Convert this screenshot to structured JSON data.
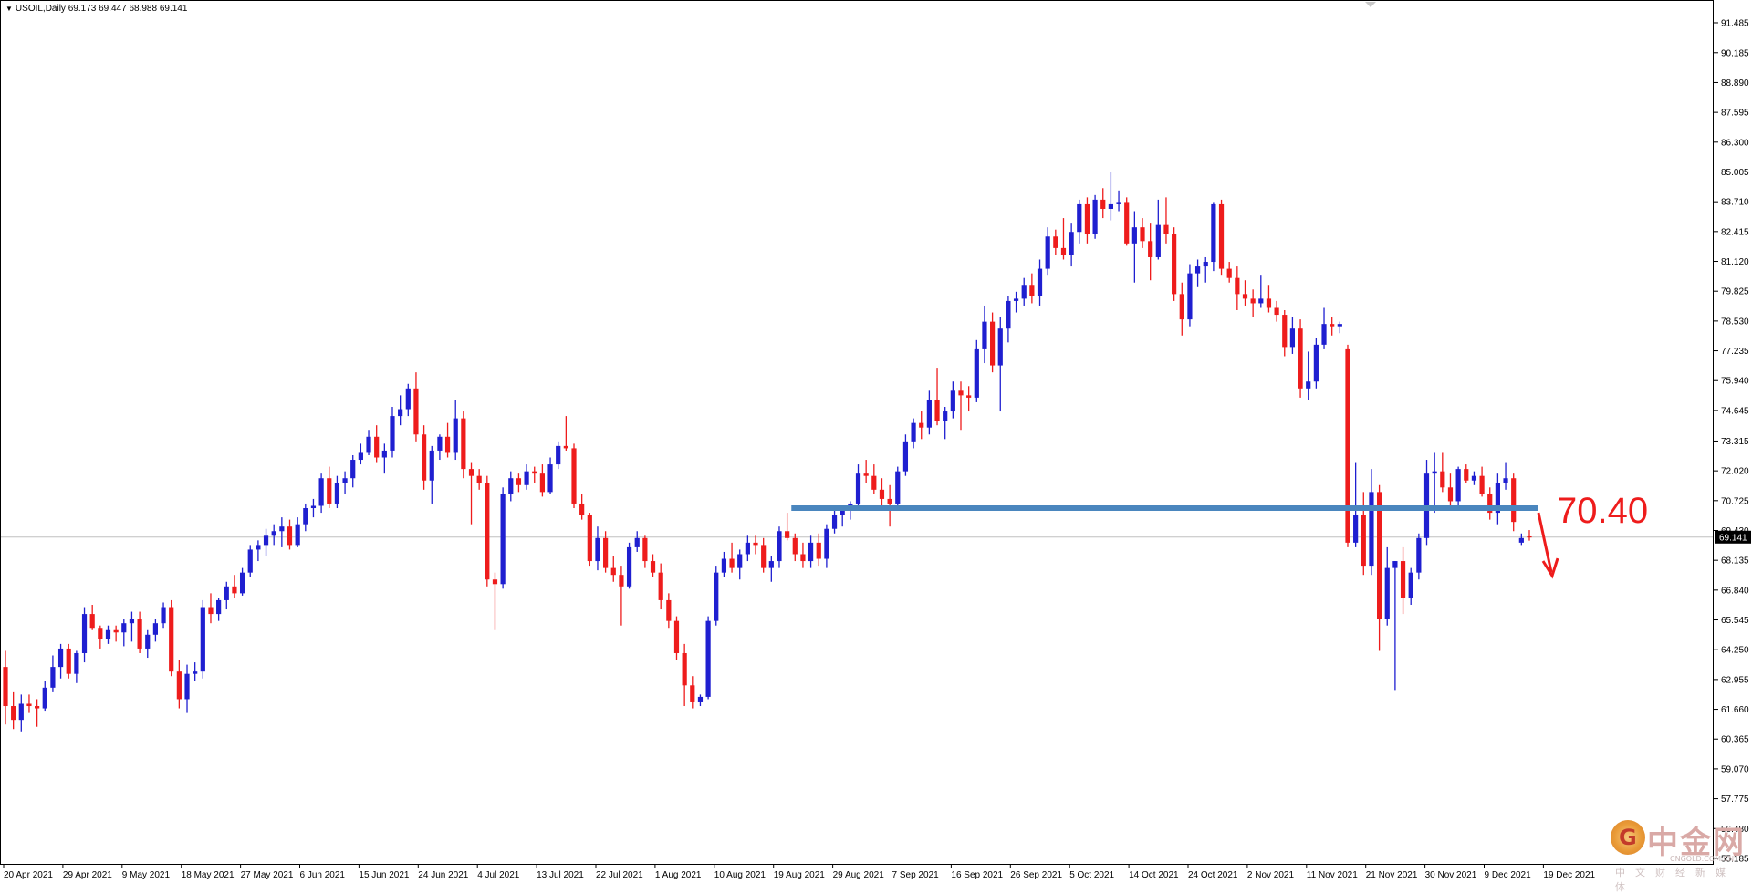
{
  "header": {
    "symbol": "USOIL,Daily",
    "open": "69.173",
    "high": "69.447",
    "low": "68.988",
    "close": "69.141"
  },
  "colors": {
    "bull": "#1f1fd0",
    "bear": "#ee1c1c",
    "level_line": "#4a86be",
    "current_price_line": "#c0c0c0",
    "annotation": "#ee1c1c"
  },
  "chart_data": {
    "type": "candlestick",
    "title": "",
    "xlabel": "",
    "ylabel": "",
    "ylim": [
      54.905,
      92.475
    ],
    "yticks": [
      "91.485",
      "90.185",
      "88.890",
      "87.595",
      "86.300",
      "85.005",
      "83.710",
      "82.415",
      "81.120",
      "79.825",
      "78.530",
      "77.235",
      "75.940",
      "74.645",
      "73.315",
      "72.020",
      "70.725",
      "69.430",
      "68.135",
      "66.840",
      "65.545",
      "64.250",
      "62.955",
      "61.660",
      "60.365",
      "59.070",
      "57.775",
      "56.480",
      "55.185"
    ],
    "xticks": [
      "20 Apr 2021",
      "29 Apr 2021",
      "9 May 2021",
      "18 May 2021",
      "27 May 2021",
      "6 Jun 2021",
      "15 Jun 2021",
      "24 Jun 2021",
      "4 Jul 2021",
      "13 Jul 2021",
      "22 Jul 2021",
      "1 Aug 2021",
      "10 Aug 2021",
      "19 Aug 2021",
      "29 Aug 2021",
      "7 Sep 2021",
      "16 Sep 2021",
      "26 Sep 2021",
      "5 Oct 2021",
      "14 Oct 2021",
      "24 Oct 2021",
      "2 Nov 2021",
      "11 Nov 2021",
      "21 Nov 2021",
      "30 Nov 2021",
      "9 Dec 2021",
      "19 Dec 2021"
    ],
    "current_price": 69.141,
    "current_price_label": "69.141",
    "support_level": 70.4,
    "support_label": "70.40",
    "candles": [
      [
        63.5,
        64.2,
        61.0,
        61.8
      ],
      [
        61.8,
        62.4,
        60.8,
        61.2
      ],
      [
        61.2,
        62.3,
        60.7,
        61.9
      ],
      [
        61.9,
        62.3,
        61.5,
        61.8
      ],
      [
        61.8,
        62.1,
        60.9,
        61.7
      ],
      [
        61.7,
        62.9,
        61.6,
        62.6
      ],
      [
        62.6,
        64.0,
        62.4,
        63.5
      ],
      [
        63.5,
        64.5,
        63.0,
        64.3
      ],
      [
        64.3,
        64.5,
        63.0,
        63.2
      ],
      [
        63.2,
        64.2,
        62.8,
        64.1
      ],
      [
        64.1,
        66.1,
        63.7,
        65.8
      ],
      [
        65.8,
        66.2,
        65.1,
        65.2
      ],
      [
        65.2,
        65.3,
        64.3,
        64.7
      ],
      [
        64.7,
        65.3,
        64.5,
        65.1
      ],
      [
        65.1,
        65.3,
        64.6,
        65.0
      ],
      [
        65.0,
        65.6,
        64.4,
        65.4
      ],
      [
        65.4,
        65.9,
        64.6,
        65.6
      ],
      [
        65.6,
        65.9,
        64.1,
        64.3
      ],
      [
        64.3,
        65.1,
        63.9,
        64.9
      ],
      [
        64.9,
        65.6,
        64.6,
        65.4
      ],
      [
        65.4,
        66.3,
        65.2,
        66.1
      ],
      [
        66.1,
        66.4,
        63.1,
        63.3
      ],
      [
        63.3,
        63.8,
        61.7,
        62.1
      ],
      [
        62.1,
        63.6,
        61.5,
        63.2
      ],
      [
        63.2,
        63.7,
        62.9,
        63.3
      ],
      [
        63.3,
        66.4,
        63.0,
        66.1
      ],
      [
        66.1,
        66.7,
        65.4,
        65.8
      ],
      [
        65.8,
        66.5,
        65.5,
        66.4
      ],
      [
        66.4,
        67.2,
        66.0,
        67.0
      ],
      [
        67.0,
        67.5,
        66.5,
        66.7
      ],
      [
        66.7,
        67.8,
        66.6,
        67.6
      ],
      [
        67.6,
        68.8,
        67.4,
        68.6
      ],
      [
        68.6,
        69.0,
        68.1,
        68.8
      ],
      [
        68.8,
        69.5,
        68.3,
        69.2
      ],
      [
        69.2,
        69.7,
        68.8,
        69.4
      ],
      [
        69.4,
        70.0,
        68.7,
        69.6
      ],
      [
        69.6,
        69.9,
        68.6,
        68.8
      ],
      [
        68.8,
        70.0,
        68.7,
        69.7
      ],
      [
        69.7,
        70.6,
        69.4,
        70.4
      ],
      [
        70.4,
        70.8,
        70.0,
        70.5
      ],
      [
        70.5,
        71.9,
        70.2,
        71.7
      ],
      [
        71.7,
        72.2,
        70.4,
        70.6
      ],
      [
        70.6,
        71.8,
        70.4,
        71.5
      ],
      [
        71.5,
        72.0,
        71.0,
        71.7
      ],
      [
        71.7,
        72.7,
        71.3,
        72.5
      ],
      [
        72.5,
        73.2,
        72.3,
        72.8
      ],
      [
        72.8,
        73.8,
        72.7,
        73.5
      ],
      [
        73.5,
        74.0,
        72.4,
        72.6
      ],
      [
        72.6,
        73.2,
        71.9,
        72.9
      ],
      [
        72.9,
        74.8,
        72.6,
        74.4
      ],
      [
        74.4,
        75.3,
        74.0,
        74.7
      ],
      [
        74.7,
        75.8,
        74.4,
        75.6
      ],
      [
        75.6,
        76.3,
        73.3,
        73.6
      ],
      [
        73.6,
        74.0,
        71.2,
        71.6
      ],
      [
        71.6,
        73.1,
        70.6,
        72.9
      ],
      [
        72.9,
        73.6,
        72.5,
        73.5
      ],
      [
        73.5,
        74.1,
        72.6,
        72.8
      ],
      [
        72.8,
        75.1,
        72.5,
        74.3
      ],
      [
        74.3,
        74.6,
        71.7,
        72.1
      ],
      [
        72.1,
        72.4,
        69.7,
        71.8
      ],
      [
        71.8,
        72.1,
        71.2,
        71.5
      ],
      [
        71.5,
        71.8,
        67.0,
        67.3
      ],
      [
        67.3,
        67.6,
        65.1,
        67.1
      ],
      [
        67.1,
        71.3,
        66.9,
        71.0
      ],
      [
        71.0,
        72.0,
        70.7,
        71.7
      ],
      [
        71.7,
        71.9,
        71.1,
        71.4
      ],
      [
        71.4,
        72.3,
        71.2,
        72.0
      ],
      [
        72.0,
        72.2,
        71.5,
        71.9
      ],
      [
        71.9,
        72.3,
        70.9,
        71.1
      ],
      [
        71.1,
        72.6,
        71.0,
        72.3
      ],
      [
        72.3,
        73.3,
        72.1,
        73.1
      ],
      [
        73.1,
        74.4,
        72.9,
        73.0
      ],
      [
        73.0,
        73.2,
        70.4,
        70.6
      ],
      [
        70.6,
        71.0,
        69.9,
        70.1
      ],
      [
        70.1,
        70.2,
        67.9,
        68.1
      ],
      [
        68.1,
        69.6,
        67.7,
        69.1
      ],
      [
        69.1,
        69.4,
        67.6,
        67.8
      ],
      [
        67.8,
        68.3,
        67.2,
        67.5
      ],
      [
        67.5,
        67.9,
        65.3,
        67.0
      ],
      [
        67.0,
        68.9,
        66.9,
        68.7
      ],
      [
        68.7,
        69.4,
        68.5,
        69.1
      ],
      [
        69.1,
        69.2,
        67.8,
        68.1
      ],
      [
        68.1,
        68.4,
        67.4,
        67.6
      ],
      [
        67.6,
        68.0,
        66.0,
        66.4
      ],
      [
        66.4,
        66.7,
        65.2,
        65.5
      ],
      [
        65.5,
        65.7,
        63.8,
        64.1
      ],
      [
        64.1,
        64.5,
        61.8,
        62.7
      ],
      [
        62.7,
        63.1,
        61.7,
        62.0
      ],
      [
        62.0,
        62.3,
        61.8,
        62.2
      ],
      [
        62.2,
        65.7,
        62.1,
        65.5
      ],
      [
        65.5,
        67.9,
        65.3,
        67.6
      ],
      [
        67.6,
        68.5,
        67.4,
        68.2
      ],
      [
        68.2,
        68.9,
        67.6,
        67.8
      ],
      [
        67.8,
        68.6,
        67.3,
        68.4
      ],
      [
        68.4,
        69.2,
        68.1,
        68.9
      ],
      [
        68.9,
        69.2,
        68.4,
        68.8
      ],
      [
        68.8,
        69.1,
        67.6,
        67.8
      ],
      [
        67.8,
        68.3,
        67.2,
        68.1
      ],
      [
        68.1,
        69.6,
        67.8,
        69.4
      ],
      [
        69.4,
        70.2,
        69.0,
        69.1
      ],
      [
        69.1,
        69.3,
        68.1,
        68.4
      ],
      [
        68.4,
        68.9,
        67.8,
        68.1
      ],
      [
        68.1,
        69.2,
        67.8,
        68.9
      ],
      [
        68.9,
        69.3,
        67.9,
        68.2
      ],
      [
        68.2,
        69.7,
        67.8,
        69.5
      ],
      [
        69.5,
        70.3,
        69.3,
        70.1
      ],
      [
        70.1,
        70.5,
        69.6,
        70.3
      ],
      [
        70.3,
        70.7,
        69.9,
        70.6
      ],
      [
        70.6,
        72.3,
        70.5,
        71.9
      ],
      [
        71.9,
        72.5,
        71.5,
        71.8
      ],
      [
        71.8,
        72.3,
        71.0,
        71.2
      ],
      [
        71.2,
        71.7,
        70.3,
        70.8
      ],
      [
        70.8,
        71.4,
        69.6,
        70.6
      ],
      [
        70.6,
        72.2,
        70.4,
        72.0
      ],
      [
        72.0,
        73.6,
        71.8,
        73.3
      ],
      [
        73.3,
        74.3,
        73.0,
        74.1
      ],
      [
        74.1,
        74.6,
        73.4,
        73.9
      ],
      [
        73.9,
        75.5,
        73.6,
        75.1
      ],
      [
        75.1,
        76.5,
        74.0,
        74.2
      ],
      [
        74.2,
        74.8,
        73.4,
        74.6
      ],
      [
        74.6,
        75.9,
        74.3,
        75.5
      ],
      [
        75.5,
        75.9,
        73.8,
        75.3
      ],
      [
        75.3,
        75.7,
        74.6,
        75.2
      ],
      [
        75.2,
        77.7,
        75.0,
        77.3
      ],
      [
        77.3,
        79.2,
        76.7,
        78.5
      ],
      [
        78.5,
        78.9,
        76.3,
        76.6
      ],
      [
        76.6,
        78.7,
        74.6,
        78.2
      ],
      [
        78.2,
        79.6,
        77.6,
        79.4
      ],
      [
        79.4,
        79.8,
        78.9,
        79.5
      ],
      [
        79.5,
        80.4,
        79.2,
        80.1
      ],
      [
        80.1,
        80.6,
        79.3,
        79.6
      ],
      [
        79.6,
        81.2,
        79.2,
        80.8
      ],
      [
        80.8,
        82.6,
        80.5,
        82.2
      ],
      [
        82.2,
        82.5,
        81.4,
        81.7
      ],
      [
        81.7,
        83.0,
        81.2,
        81.4
      ],
      [
        81.4,
        82.8,
        80.9,
        82.4
      ],
      [
        82.4,
        83.8,
        81.9,
        83.6
      ],
      [
        83.6,
        83.9,
        81.9,
        82.3
      ],
      [
        82.3,
        84.0,
        82.1,
        83.8
      ],
      [
        83.8,
        84.3,
        83.0,
        83.4
      ],
      [
        83.4,
        85.0,
        82.9,
        83.6
      ],
      [
        83.6,
        84.2,
        83.3,
        83.7
      ],
      [
        83.7,
        83.9,
        81.8,
        81.9
      ],
      [
        81.9,
        83.3,
        80.2,
        82.6
      ],
      [
        82.6,
        83.0,
        81.7,
        82.0
      ],
      [
        82.0,
        82.8,
        80.3,
        81.3
      ],
      [
        81.3,
        83.8,
        81.2,
        82.7
      ],
      [
        82.7,
        83.9,
        81.9,
        82.3
      ],
      [
        82.3,
        82.6,
        79.4,
        79.7
      ],
      [
        79.7,
        80.2,
        77.9,
        78.6
      ],
      [
        78.6,
        81.0,
        78.3,
        80.6
      ],
      [
        80.6,
        81.2,
        80.0,
        80.9
      ],
      [
        80.9,
        81.3,
        80.2,
        81.1
      ],
      [
        81.1,
        83.7,
        80.7,
        83.6
      ],
      [
        83.6,
        83.8,
        80.5,
        80.8
      ],
      [
        80.8,
        81.1,
        80.2,
        80.4
      ],
      [
        80.4,
        80.9,
        79.0,
        79.7
      ],
      [
        79.7,
        80.3,
        79.2,
        79.5
      ],
      [
        79.5,
        79.9,
        78.7,
        79.3
      ],
      [
        79.3,
        80.5,
        79.1,
        79.5
      ],
      [
        79.5,
        80.1,
        78.9,
        79.1
      ],
      [
        79.1,
        79.4,
        78.5,
        78.8
      ],
      [
        78.8,
        79.0,
        77.0,
        77.4
      ],
      [
        77.4,
        78.7,
        77.1,
        78.2
      ],
      [
        78.2,
        78.6,
        75.2,
        75.6
      ],
      [
        75.6,
        77.2,
        75.1,
        75.9
      ],
      [
        75.9,
        77.8,
        75.6,
        77.5
      ],
      [
        77.5,
        79.1,
        77.3,
        78.4
      ],
      [
        78.4,
        78.7,
        77.9,
        78.3
      ],
      [
        78.3,
        78.5,
        78.0,
        78.4
      ],
      [
        77.3,
        77.5,
        68.7,
        68.9
      ],
      [
        68.9,
        72.4,
        68.7,
        70.1
      ],
      [
        70.1,
        71.1,
        67.5,
        67.9
      ],
      [
        67.9,
        72.1,
        67.5,
        71.1
      ],
      [
        71.1,
        71.4,
        64.2,
        65.6
      ],
      [
        65.6,
        68.7,
        65.3,
        67.8
      ],
      [
        67.8,
        68.1,
        62.5,
        68.1
      ],
      [
        68.1,
        68.7,
        65.8,
        66.5
      ],
      [
        66.5,
        67.8,
        66.2,
        67.6
      ],
      [
        67.6,
        69.3,
        67.3,
        69.1
      ],
      [
        69.1,
        72.5,
        68.8,
        71.9
      ],
      [
        71.9,
        72.8,
        70.2,
        72.0
      ],
      [
        72.0,
        72.8,
        71.1,
        71.3
      ],
      [
        71.3,
        71.9,
        70.4,
        70.7
      ],
      [
        70.7,
        72.2,
        70.5,
        72.1
      ],
      [
        72.1,
        72.3,
        71.5,
        71.6
      ],
      [
        71.6,
        72.0,
        71.4,
        71.8
      ],
      [
        71.8,
        72.2,
        70.9,
        71.0
      ],
      [
        71.0,
        71.3,
        69.9,
        70.2
      ],
      [
        70.2,
        71.9,
        69.7,
        71.5
      ],
      [
        71.5,
        72.4,
        71.2,
        71.7
      ],
      [
        71.7,
        71.9,
        69.4,
        69.8
      ],
      [
        68.9,
        69.3,
        68.8,
        69.1
      ],
      [
        69.173,
        69.447,
        68.988,
        69.141
      ]
    ]
  },
  "watermark": {
    "text": "中金网",
    "url": "CNGOLD.COM.CN",
    "subtitle": "中文财经新媒体",
    "logo_glyph": "G"
  }
}
